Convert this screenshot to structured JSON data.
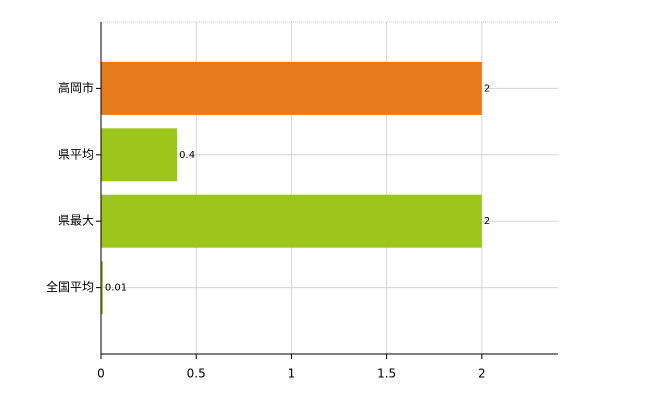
{
  "chart_data": {
    "type": "hbar",
    "categories": [
      "高岡市",
      "県平均",
      "県最大",
      "全国平均"
    ],
    "values": [
      2,
      0.4,
      2,
      0.01
    ],
    "colors": [
      "#e87a1e",
      "#9dc61c",
      "#9dc61c",
      "#9dc61c"
    ],
    "xlim": [
      0,
      2.4
    ],
    "xticks": [
      0,
      0.5,
      1,
      1.5,
      2
    ],
    "grid": true
  }
}
